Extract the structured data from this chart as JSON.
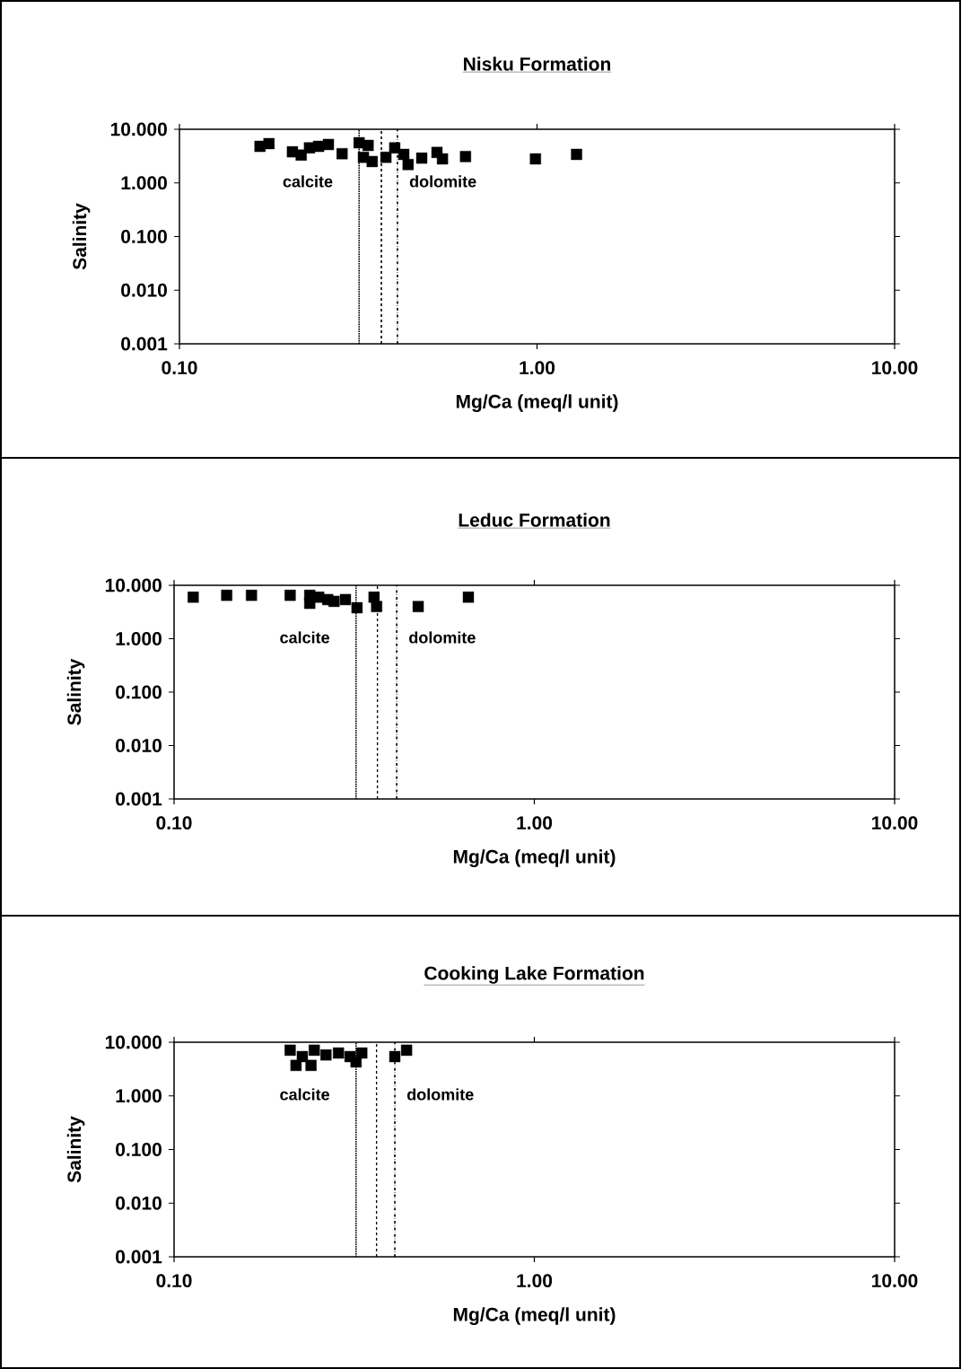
{
  "chart_data": [
    {
      "type": "scatter",
      "title": "Nisku Formation",
      "xlabel": "Mg/Ca (meq/l unit)",
      "ylabel": "Salinity",
      "log": "xy",
      "marker": "square",
      "xlim": [
        0.1,
        10
      ],
      "ylim": [
        0.001,
        10
      ],
      "xticks": [
        {
          "value": 0.1,
          "label": "0.10"
        },
        {
          "value": 1,
          "label": "1.00"
        },
        {
          "value": 10,
          "label": "10.00"
        }
      ],
      "yticks": [
        {
          "value": 0.001,
          "label": "0.001"
        },
        {
          "value": 0.01,
          "label": "0.010"
        },
        {
          "value": 0.1,
          "label": "0.100"
        },
        {
          "value": 1,
          "label": "1.000"
        },
        {
          "value": 10,
          "label": "10.000"
        }
      ],
      "series": [
        {
          "color": "#000000",
          "x": [
            0.168,
            0.178,
            0.207,
            0.219,
            0.231,
            0.245,
            0.261,
            0.285,
            0.318,
            0.337,
            0.327,
            0.346,
            0.378,
            0.4,
            0.424,
            0.436,
            0.476,
            0.525,
            0.544,
            0.631,
            0.99,
            1.29
          ],
          "values": [
            4.8,
            5.4,
            3.8,
            3.3,
            4.5,
            4.8,
            5.2,
            3.5,
            5.6,
            5.0,
            3.0,
            2.5,
            3.0,
            4.5,
            3.4,
            2.2,
            2.9,
            3.7,
            2.8,
            3.1,
            2.8,
            3.4
          ]
        }
      ],
      "ref_lines": [
        {
          "axis": "x",
          "value": 0.318,
          "line_style": "dotted"
        },
        {
          "axis": "x",
          "value": 0.367,
          "line_style": "dashed"
        },
        {
          "axis": "x",
          "value": 0.407,
          "line_style": "dashdot"
        }
      ],
      "annotations": [
        "calcite",
        "dolomite"
      ]
    },
    {
      "type": "scatter",
      "title": "Leduc Formation",
      "xlabel": "Mg/Ca (meq/l unit)",
      "ylabel": "Salinity",
      "log": "xy",
      "marker": "square",
      "xlim": [
        0.1,
        10
      ],
      "ylim": [
        0.001,
        10
      ],
      "xticks": [
        {
          "value": 0.1,
          "label": "0.10"
        },
        {
          "value": 1,
          "label": "1.00"
        },
        {
          "value": 10,
          "label": "10.00"
        }
      ],
      "yticks": [
        {
          "value": 0.001,
          "label": "0.001"
        },
        {
          "value": 0.01,
          "label": "0.010"
        },
        {
          "value": 0.1,
          "label": "0.100"
        },
        {
          "value": 1,
          "label": "1.000"
        },
        {
          "value": 10,
          "label": "10.000"
        }
      ],
      "series": [
        {
          "color": "#000000",
          "x": [
            0.113,
            0.14,
            0.164,
            0.21,
            0.238,
            0.252,
            0.267,
            0.238,
            0.278,
            0.299,
            0.322,
            0.359,
            0.365,
            0.476,
            0.656
          ],
          "values": [
            6.0,
            6.5,
            6.5,
            6.5,
            6.5,
            6.0,
            5.4,
            4.6,
            5.0,
            5.4,
            3.8,
            6.0,
            4.0,
            4.0,
            6.0
          ]
        }
      ],
      "ref_lines": [
        {
          "axis": "x",
          "value": 0.32,
          "line_style": "dotted"
        },
        {
          "axis": "x",
          "value": 0.367,
          "line_style": "dashed"
        },
        {
          "axis": "x",
          "value": 0.415,
          "line_style": "dashdot"
        }
      ],
      "annotations": [
        "calcite",
        "dolomite"
      ]
    },
    {
      "type": "scatter",
      "title": "Cooking Lake Formation",
      "xlabel": "Mg/Ca (meq/l unit)",
      "ylabel": "Salinity",
      "log": "xy",
      "marker": "square",
      "xlim": [
        0.1,
        10
      ],
      "ylim": [
        0.001,
        10
      ],
      "xticks": [
        {
          "value": 0.1,
          "label": "0.10"
        },
        {
          "value": 1,
          "label": "1.00"
        },
        {
          "value": 10,
          "label": "10.00"
        }
      ],
      "yticks": [
        {
          "value": 0.001,
          "label": "0.001"
        },
        {
          "value": 0.01,
          "label": "0.010"
        },
        {
          "value": 0.1,
          "label": "0.100"
        },
        {
          "value": 1,
          "label": "1.000"
        },
        {
          "value": 10,
          "label": "10.000"
        }
      ],
      "series": [
        {
          "color": "#000000",
          "x": [
            0.21,
            0.227,
            0.245,
            0.264,
            0.286,
            0.308,
            0.32,
            0.332,
            0.218,
            0.24,
            0.41,
            0.442
          ],
          "values": [
            7.1,
            5.4,
            7.1,
            5.8,
            6.3,
            5.4,
            4.3,
            6.3,
            3.7,
            3.7,
            5.4,
            7.1
          ]
        }
      ],
      "ref_lines": [
        {
          "axis": "x",
          "value": 0.32,
          "line_style": "dotted"
        },
        {
          "axis": "x",
          "value": 0.365,
          "line_style": "dashed"
        },
        {
          "axis": "x",
          "value": 0.41,
          "line_style": "dashdot"
        }
      ],
      "annotations": [
        "calcite",
        "dolomite"
      ]
    }
  ]
}
